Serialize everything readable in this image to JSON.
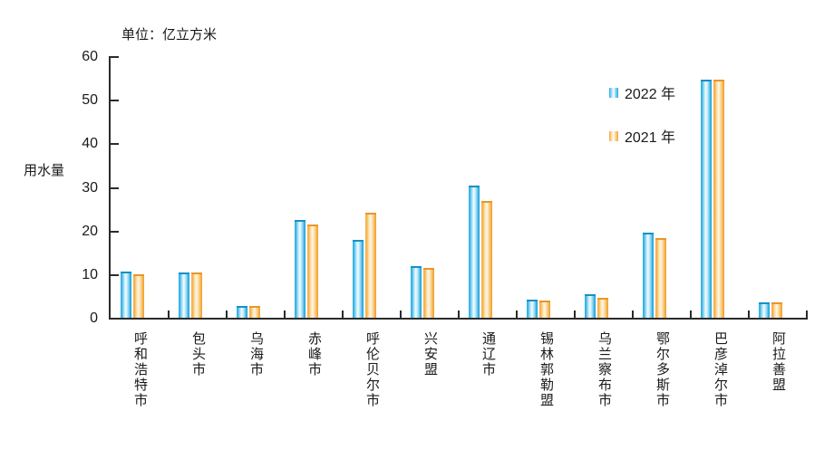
{
  "chart_data": {
    "type": "bar",
    "title": "",
    "unit_label": "单位：亿立方米",
    "ylabel": "用水量",
    "xlabel": "",
    "categories": [
      "呼和浩特市",
      "包头市",
      "乌海市",
      "赤峰市",
      "呼伦贝尔市",
      "兴安盟",
      "通辽市",
      "锡林郭勒盟",
      "乌兰察布市",
      "鄂尔多斯市",
      "巴彦淖尔市",
      "阿拉善盟"
    ],
    "series": [
      {
        "name": "2022 年",
        "color": "#29ABE2",
        "values": [
          10.5,
          10.4,
          2.8,
          22.5,
          17.9,
          11.8,
          30.4,
          4.1,
          5.4,
          19.6,
          54.6,
          3.5
        ]
      },
      {
        "name": "2021 年",
        "color": "#F5A937",
        "values": [
          10.0,
          10.4,
          2.7,
          21.4,
          24.1,
          11.4,
          26.7,
          4.0,
          4.6,
          18.2,
          54.5,
          3.6
        ]
      }
    ],
    "ylim": [
      0,
      60
    ],
    "yticks": [
      0,
      10,
      20,
      30,
      40,
      50,
      60
    ],
    "grid": false,
    "legend_position": "top-right",
    "axis_color": "#2b2b2b",
    "text_color": "#1a1a1a"
  }
}
